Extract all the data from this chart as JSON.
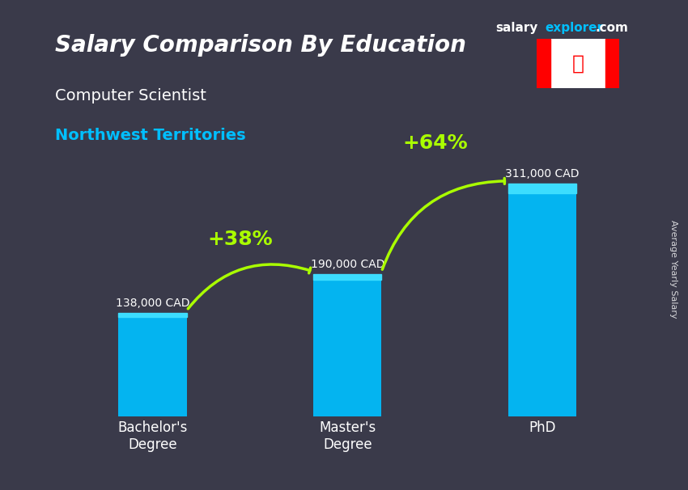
{
  "title": "Salary Comparison By Education",
  "subtitle": "Computer Scientist",
  "location": "Northwest Territories",
  "categories": [
    "Bachelor's\nDegree",
    "Master's\nDegree",
    "PhD"
  ],
  "values": [
    138000,
    190000,
    311000
  ],
  "value_labels": [
    "138,000 CAD",
    "190,000 CAD",
    "311,000 CAD"
  ],
  "bar_color": "#00BFFF",
  "bar_color_top": "#40E0FF",
  "bar_width": 0.35,
  "pct_labels": [
    "+38%",
    "+64%"
  ],
  "pct_color": "#AAFF00",
  "background_color": "#3a3a4a",
  "title_color": "#FFFFFF",
  "subtitle_color": "#FFFFFF",
  "location_color": "#00BFFF",
  "value_label_color": "#FFFFFF",
  "xlabel_color": "#FFFFFF",
  "watermark": "salaryexplorer.com",
  "side_label": "Average Yearly Salary",
  "ylim": [
    0,
    360000
  ]
}
